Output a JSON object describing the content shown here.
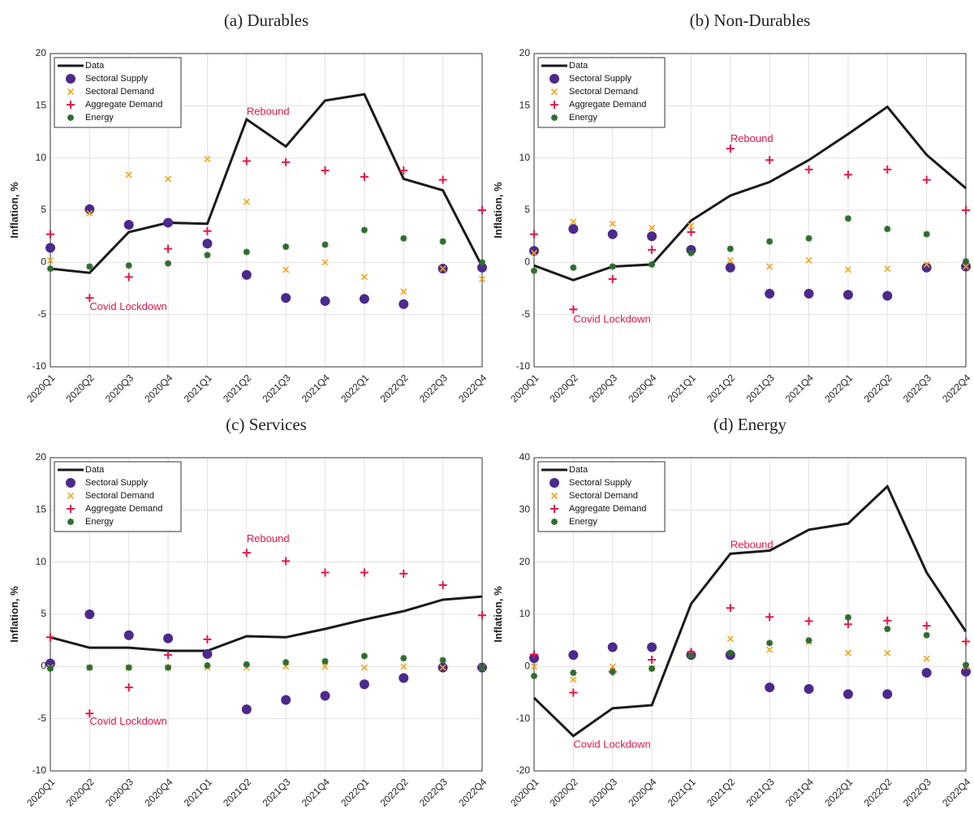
{
  "chart_data": [
    {
      "type": "line",
      "title": "(a) Durables",
      "ylabel": "Inflation, %",
      "categories": [
        "2020Q1",
        "2020Q2",
        "2020Q3",
        "2020Q4",
        "2021Q1",
        "2021Q2",
        "2021Q3",
        "2021Q4",
        "2022Q1",
        "2022Q2",
        "2022Q3",
        "2022Q4"
      ],
      "ylim": [
        -10,
        20
      ],
      "yticks": [
        -10,
        -5,
        0,
        5,
        10,
        15,
        20
      ],
      "grid": true,
      "legend": "upper left",
      "series": [
        {
          "name": "Data",
          "style": "line",
          "color": "#1a1a1a",
          "values": [
            -0.6,
            -1.0,
            2.9,
            3.8,
            3.7,
            13.7,
            11.1,
            15.5,
            16.1,
            8.0,
            6.9,
            -0.4
          ]
        },
        {
          "name": "Sectoral Supply",
          "style": "circle",
          "color": "#4b2a8c",
          "values": [
            1.4,
            5.1,
            3.6,
            3.8,
            1.8,
            -1.2,
            -3.4,
            -3.7,
            -3.5,
            -4.0,
            -0.6,
            -0.5
          ]
        },
        {
          "name": "Sectoral Demand",
          "style": "x",
          "color": "#f0a81c",
          "values": [
            0.2,
            4.7,
            8.4,
            8.0,
            9.9,
            5.8,
            -0.7,
            0.0,
            -1.4,
            -2.8,
            -0.6,
            -1.6
          ]
        },
        {
          "name": "Aggregate Demand",
          "style": "plus",
          "color": "#e3174a",
          "values": [
            2.7,
            -3.4,
            -1.4,
            1.3,
            3.0,
            9.7,
            9.6,
            8.8,
            8.2,
            8.8,
            7.9,
            5.0
          ]
        },
        {
          "name": "Energy",
          "style": "asterisk",
          "color": "#2f6b2f",
          "values": [
            -0.6,
            -0.4,
            -0.3,
            -0.1,
            0.7,
            1.0,
            1.5,
            1.7,
            3.1,
            2.3,
            2.0,
            0.0
          ]
        }
      ],
      "annotations": [
        {
          "text": "Rebound",
          "x": "2021Q2",
          "y": 14.4
        },
        {
          "text": "Covid Lockdown",
          "x": "2020Q2",
          "y": -4.3
        }
      ]
    },
    {
      "type": "line",
      "title": "(b) Non-Durables",
      "ylabel": "Inflation, %",
      "categories": [
        "2020Q1",
        "2020Q2",
        "2020Q3",
        "2020Q4",
        "2021Q1",
        "2021Q2",
        "2021Q3",
        "2021Q4",
        "2022Q1",
        "2022Q2",
        "2022Q3",
        "2022Q4"
      ],
      "ylim": [
        -10,
        20
      ],
      "yticks": [
        -10,
        -5,
        0,
        5,
        10,
        15,
        20
      ],
      "grid": true,
      "legend": "upper left",
      "series": [
        {
          "name": "Data",
          "style": "line",
          "color": "#1a1a1a",
          "values": [
            -0.3,
            -1.7,
            -0.4,
            -0.2,
            4.0,
            6.4,
            7.7,
            9.8,
            12.3,
            14.9,
            10.3,
            7.1
          ]
        },
        {
          "name": "Sectoral Supply",
          "style": "circle",
          "color": "#4b2a8c",
          "values": [
            1.1,
            3.2,
            2.7,
            2.5,
            1.2,
            -0.5,
            -3.0,
            -3.0,
            -3.1,
            -3.2,
            -0.5,
            -0.4
          ]
        },
        {
          "name": "Sectoral Demand",
          "style": "x",
          "color": "#f0a81c",
          "values": [
            0.9,
            3.9,
            3.7,
            3.3,
            3.5,
            0.2,
            -0.4,
            0.2,
            -0.7,
            -0.6,
            -0.2,
            -0.4
          ]
        },
        {
          "name": "Aggregate Demand",
          "style": "plus",
          "color": "#e3174a",
          "values": [
            2.7,
            -4.5,
            -1.6,
            1.2,
            2.9,
            10.9,
            9.8,
            8.9,
            8.4,
            8.9,
            7.9,
            5.0
          ]
        },
        {
          "name": "Energy",
          "style": "asterisk",
          "color": "#2f6b2f",
          "values": [
            -0.8,
            -0.5,
            -0.4,
            -0.2,
            0.9,
            1.3,
            2.0,
            2.3,
            4.2,
            3.2,
            2.7,
            0.1
          ]
        }
      ],
      "annotations": [
        {
          "text": "Rebound",
          "x": "2021Q2",
          "y": 11.8
        },
        {
          "text": "Covid Lockdown",
          "x": "2020Q2",
          "y": -5.5
        }
      ]
    },
    {
      "type": "line",
      "title": "(c) Services",
      "ylabel": "Inflation, %",
      "categories": [
        "2020Q1",
        "2020Q2",
        "2020Q3",
        "2020Q4",
        "2021Q1",
        "2021Q2",
        "2021Q3",
        "2021Q4",
        "2022Q1",
        "2022Q2",
        "2022Q3",
        "2022Q4"
      ],
      "ylim": [
        -10,
        20
      ],
      "yticks": [
        -10,
        -5,
        0,
        5,
        10,
        15,
        20
      ],
      "grid": true,
      "legend": "upper left",
      "series": [
        {
          "name": "Data",
          "style": "line",
          "color": "#1a1a1a",
          "values": [
            2.8,
            1.8,
            1.8,
            1.5,
            1.5,
            2.9,
            2.8,
            3.6,
            4.5,
            5.3,
            6.4,
            6.7
          ]
        },
        {
          "name": "Sectoral Supply",
          "style": "circle",
          "color": "#4b2a8c",
          "values": [
            0.3,
            5.0,
            3.0,
            2.7,
            1.2,
            -4.1,
            -3.2,
            -2.8,
            -1.7,
            -1.1,
            -0.1,
            -0.1
          ]
        },
        {
          "name": "Sectoral Demand",
          "style": "x",
          "color": "#f0a81c",
          "values": [
            -0.1,
            -0.1,
            -0.1,
            -0.1,
            -0.1,
            -0.1,
            0.0,
            0.0,
            -0.1,
            0.0,
            -0.1,
            -0.1
          ]
        },
        {
          "name": "Aggregate Demand",
          "style": "plus",
          "color": "#e3174a",
          "values": [
            2.8,
            -4.5,
            -2.0,
            1.1,
            2.6,
            10.9,
            10.1,
            9.0,
            9.0,
            8.9,
            7.8,
            4.9
          ]
        },
        {
          "name": "Energy",
          "style": "asterisk",
          "color": "#2f6b2f",
          "values": [
            -0.2,
            -0.1,
            -0.1,
            -0.1,
            0.1,
            0.2,
            0.4,
            0.5,
            1.0,
            0.8,
            0.6,
            -0.1
          ]
        }
      ],
      "annotations": [
        {
          "text": "Rebound",
          "x": "2021Q2",
          "y": 12.2
        },
        {
          "text": "Covid Lockdown",
          "x": "2020Q2",
          "y": -5.3
        }
      ]
    },
    {
      "type": "line",
      "title": "(d) Energy",
      "ylabel": "Inflation, %",
      "categories": [
        "2020Q1",
        "2020Q2",
        "2020Q3",
        "2020Q4",
        "2021Q1",
        "2021Q2",
        "2021Q3",
        "2021Q4",
        "2022Q1",
        "2022Q2",
        "2022Q3",
        "2022Q4"
      ],
      "ylim": [
        -20,
        40
      ],
      "yticks": [
        -20,
        -10,
        0,
        10,
        20,
        30,
        40
      ],
      "grid": true,
      "legend": "upper left",
      "series": [
        {
          "name": "Data",
          "style": "line",
          "color": "#1a1a1a",
          "values": [
            -6.0,
            -13.3,
            -8.0,
            -7.4,
            12.0,
            21.6,
            22.2,
            26.2,
            27.4,
            34.5,
            18.0,
            6.7
          ]
        },
        {
          "name": "Sectoral Supply",
          "style": "circle",
          "color": "#4b2a8c",
          "values": [
            1.6,
            2.2,
            3.7,
            3.7,
            2.2,
            2.2,
            -4.0,
            -4.3,
            -5.3,
            -5.3,
            -1.2,
            -1.0
          ]
        },
        {
          "name": "Sectoral Demand",
          "style": "x",
          "color": "#f0a81c",
          "values": [
            0.0,
            -2.5,
            0.0,
            -0.3,
            2.4,
            5.3,
            3.2,
            4.7,
            2.6,
            2.6,
            1.5,
            0.0
          ]
        },
        {
          "name": "Aggregate Demand",
          "style": "plus",
          "color": "#e3174a",
          "values": [
            2.3,
            -5.0,
            -1.0,
            1.3,
            2.8,
            11.2,
            9.5,
            8.7,
            8.1,
            8.8,
            7.8,
            4.8
          ]
        },
        {
          "name": "Energy",
          "style": "asterisk",
          "color": "#2f6b2f",
          "values": [
            -1.8,
            -1.2,
            -1.0,
            -0.4,
            2.1,
            2.6,
            4.5,
            5.0,
            9.4,
            7.2,
            6.0,
            0.3
          ]
        }
      ],
      "annotations": [
        {
          "text": "Rebound",
          "x": "2021Q2",
          "y": 23.2
        },
        {
          "text": "Covid Lockdown",
          "x": "2020Q2",
          "y": -15.0
        }
      ]
    }
  ]
}
